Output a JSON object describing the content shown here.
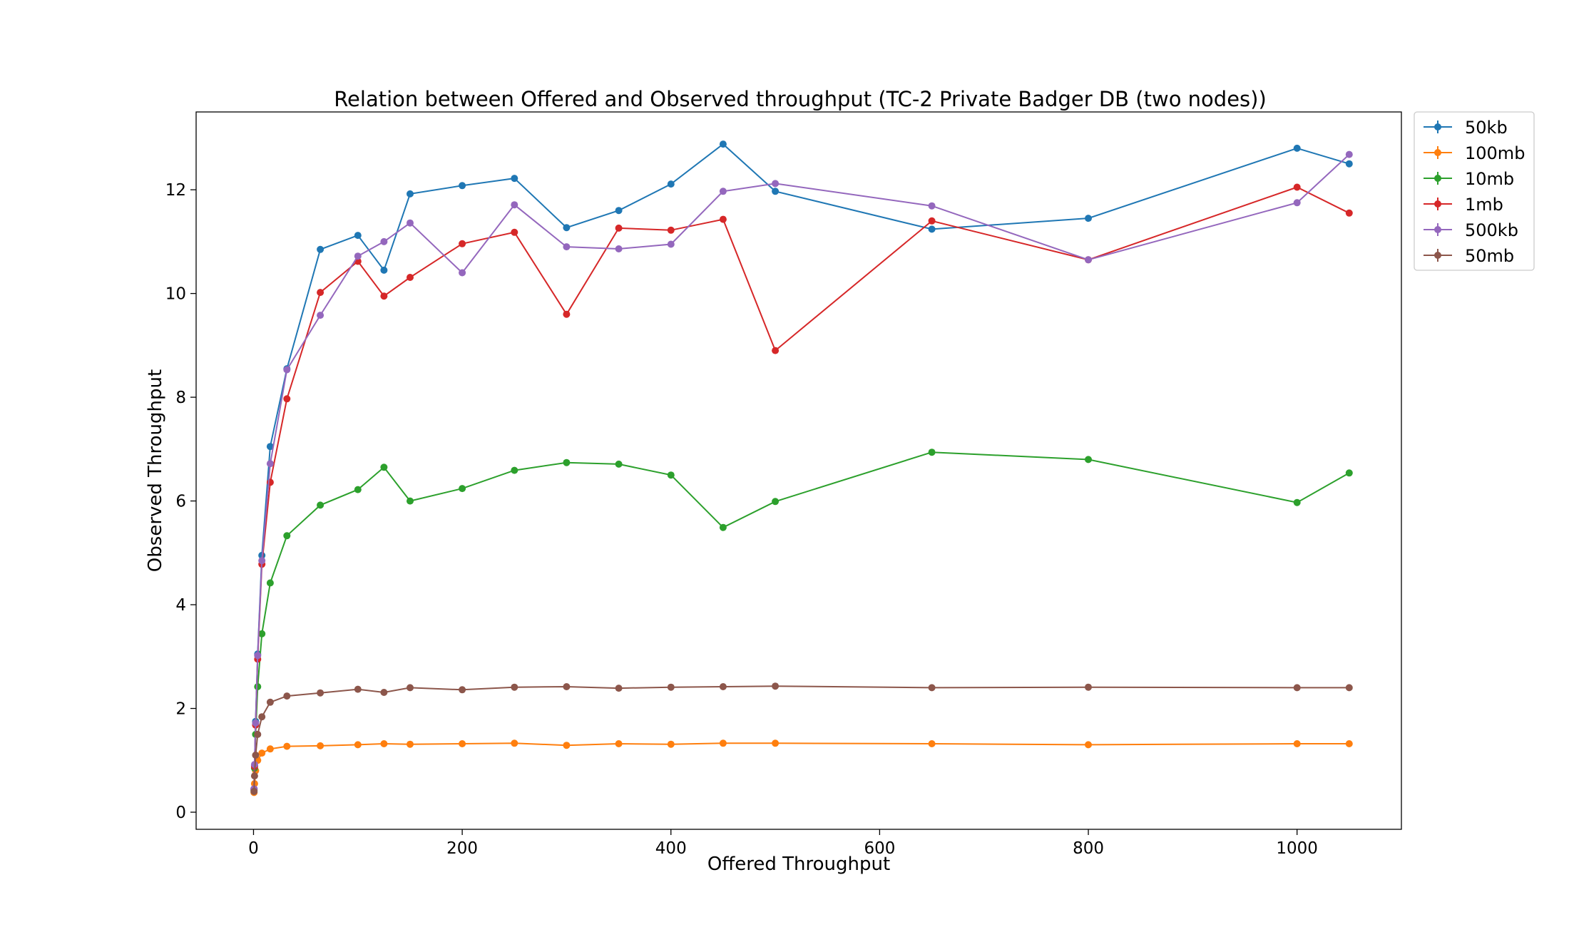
{
  "chart_data": {
    "type": "line",
    "title": "Relation between Offered and Observed throughput (TC-2  Private Badger DB (two nodes))",
    "xlabel": "Offered Throughput",
    "ylabel": "Observed Throughput",
    "xlim": [
      -55,
      1100
    ],
    "ylim": [
      -0.33,
      13.5
    ],
    "xticks": [
      0,
      200,
      400,
      600,
      800,
      1000
    ],
    "yticks": [
      0,
      2,
      4,
      6,
      8,
      10,
      12
    ],
    "grid": false,
    "legend_position": "outside-top-right",
    "x": [
      0.5,
      1,
      2,
      4,
      8,
      16,
      32,
      64,
      100,
      125,
      150,
      200,
      250,
      300,
      350,
      400,
      450,
      500,
      650,
      800,
      1000,
      1050
    ],
    "series": [
      {
        "name": "50kb",
        "color": "#1f77b4",
        "values": [
          0.45,
          0.9,
          1.75,
          3.05,
          4.95,
          7.05,
          8.55,
          10.85,
          11.12,
          10.45,
          11.92,
          12.08,
          12.22,
          11.27,
          11.6,
          12.11,
          12.88,
          11.97,
          11.24,
          11.45,
          12.8,
          12.5
        ]
      },
      {
        "name": "100mb",
        "color": "#ff7f0e",
        "values": [
          0.38,
          0.55,
          0.8,
          1.0,
          1.14,
          1.22,
          1.27,
          1.28,
          1.3,
          1.32,
          1.31,
          1.32,
          1.33,
          1.29,
          1.32,
          1.31,
          1.33,
          1.33,
          1.32,
          1.3,
          1.32,
          1.32
        ]
      },
      {
        "name": "10mb",
        "color": "#2ca02c",
        "values": [
          0.42,
          0.85,
          1.5,
          2.42,
          3.44,
          4.42,
          5.33,
          5.92,
          6.22,
          6.65,
          6.0,
          6.24,
          6.59,
          6.74,
          6.71,
          6.5,
          5.49,
          5.99,
          6.94,
          6.8,
          5.97,
          6.54
        ]
      },
      {
        "name": "1mb",
        "color": "#d62728",
        "values": [
          0.44,
          0.88,
          1.68,
          2.95,
          4.78,
          6.36,
          7.97,
          10.02,
          10.62,
          9.95,
          10.31,
          10.96,
          11.18,
          9.6,
          11.26,
          11.22,
          11.43,
          8.9,
          11.4,
          10.65,
          12.05,
          11.55
        ]
      },
      {
        "name": "500kb",
        "color": "#9467bd",
        "values": [
          0.45,
          0.92,
          1.72,
          3.02,
          4.85,
          6.72,
          8.53,
          9.58,
          10.72,
          11.0,
          11.36,
          10.4,
          11.71,
          10.9,
          10.86,
          10.95,
          11.97,
          12.12,
          11.69,
          10.65,
          11.75,
          12.68
        ]
      },
      {
        "name": "50mb",
        "color": "#8c564b",
        "values": [
          0.4,
          0.7,
          1.1,
          1.5,
          1.84,
          2.12,
          2.24,
          2.3,
          2.37,
          2.31,
          2.4,
          2.36,
          2.41,
          2.42,
          2.39,
          2.41,
          2.42,
          2.43,
          2.4,
          2.41,
          2.4,
          2.4
        ]
      }
    ]
  }
}
